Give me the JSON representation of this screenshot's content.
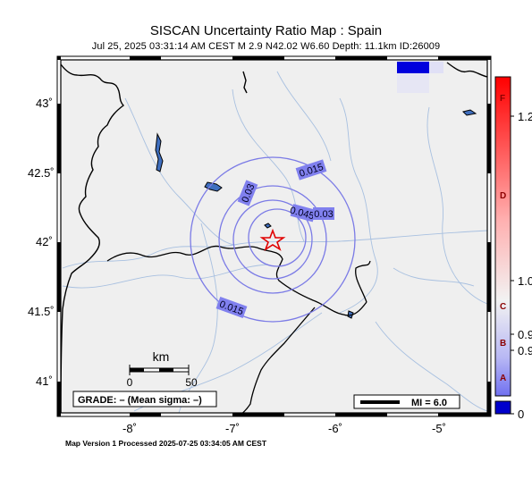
{
  "header": {
    "title": "SISCAN Uncertainty Ratio Map : Spain",
    "subtitle": "Jul 25, 2025 03:31:14 AM CEST   M 2.9    N42.02 W6.60    Depth: 11.1km    ID:26009"
  },
  "footer": {
    "processed": "Map Version 1 Processed 2025-07-25 03:34:05 AM CEST"
  },
  "map": {
    "lat_labels": [
      "43˚",
      "42.5˚",
      "42˚",
      "41.5˚",
      "41˚"
    ],
    "lon_labels": [
      "-8˚",
      "-7˚",
      "-6˚",
      "-5˚"
    ],
    "epicenter": {
      "lat": 42.02,
      "lon": -6.6,
      "icon": "star-icon"
    },
    "contour_labels": [
      "0.015",
      "0.03",
      "0.045",
      "0.03",
      "0.015"
    ],
    "grade_box": "GRADE: – (Mean sigma: –)",
    "mi_box": "MI = 6.0",
    "scale_bar": {
      "unit": "km",
      "tick_start": "0",
      "tick_end": "50"
    }
  },
  "colorbar": {
    "letters": [
      "F",
      "D",
      "C",
      "B",
      "A"
    ],
    "tick_values": [
      "1.2",
      "1.0",
      "0.9",
      "0.9",
      "0"
    ],
    "colors": {
      "low": "#0000cc",
      "mid": "#f4f4f4",
      "high": "#ff0000"
    }
  }
}
